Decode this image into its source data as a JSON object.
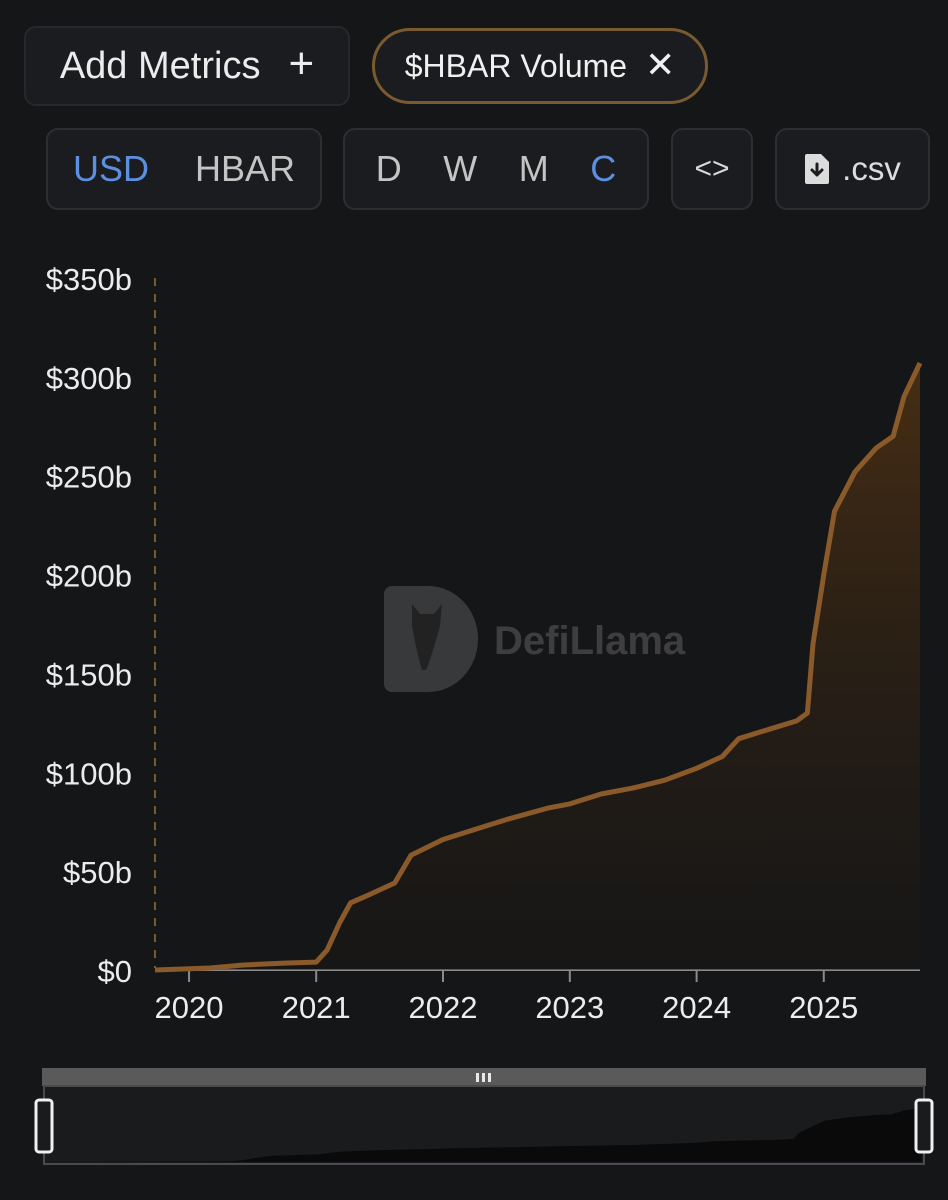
{
  "toolbar": {
    "add_metrics_label": "Add Metrics",
    "add_icon": "plus-icon",
    "metric_chip_label": "$HBAR Volume",
    "remove_icon": "close-icon",
    "denomination_options": [
      "USD",
      "HBAR"
    ],
    "denomination_selected": "USD",
    "period_options": [
      "D",
      "W",
      "M",
      "C"
    ],
    "period_selected": "C",
    "embed_icon": "code-icon",
    "csv_label": ".csv",
    "csv_icon": "file-download-icon"
  },
  "watermark": "DefiLlama",
  "colors": {
    "series": "#8a5a2a",
    "series_fill_top": "#4a2f14",
    "active_option": "#5d8fe0",
    "accent_border": "#7a5a30"
  },
  "chart_data": {
    "type": "area",
    "cumulative": true,
    "y_tick_labels": [
      "$0",
      "$50b",
      "$100b",
      "$150b",
      "$200b",
      "$250b",
      "$300b",
      "$350b"
    ],
    "x_tick_labels": [
      "2020",
      "2021",
      "2022",
      "2023",
      "2024",
      "2025"
    ],
    "ylim": [
      0,
      350
    ],
    "xlim": [
      "2019-09-25",
      "2025-10-05"
    ],
    "y_unit": "b USD",
    "series": [
      {
        "values": [
          [
            "2019-09-25",
            0
          ],
          [
            "2020-03-01",
            1
          ],
          [
            "2020-06-01",
            2.5
          ],
          [
            "2020-10-01",
            3.5
          ],
          [
            "2021-01-01",
            4
          ],
          [
            "2021-02-01",
            10
          ],
          [
            "2021-03-10",
            24
          ],
          [
            "2021-04-10",
            34
          ],
          [
            "2021-06-01",
            38
          ],
          [
            "2021-08-15",
            44
          ],
          [
            "2021-10-01",
            58
          ],
          [
            "2022-01-01",
            66
          ],
          [
            "2022-04-01",
            71
          ],
          [
            "2022-07-01",
            76
          ],
          [
            "2022-11-01",
            82
          ],
          [
            "2023-01-01",
            84
          ],
          [
            "2023-04-01",
            89
          ],
          [
            "2023-07-01",
            92
          ],
          [
            "2023-10-01",
            96
          ],
          [
            "2024-01-01",
            102
          ],
          [
            "2024-03-15",
            108
          ],
          [
            "2024-05-01",
            117
          ],
          [
            "2024-08-01",
            122
          ],
          [
            "2024-10-15",
            126
          ],
          [
            "2024-11-15",
            130
          ],
          [
            "2024-12-01",
            165
          ],
          [
            "2025-01-01",
            200
          ],
          [
            "2025-02-01",
            232
          ],
          [
            "2025-04-01",
            252
          ],
          [
            "2025-06-01",
            264
          ],
          [
            "2025-07-20",
            270
          ],
          [
            "2025-08-20",
            290
          ],
          [
            "2025-10-05",
            307
          ]
        ]
      }
    ],
    "grid": false,
    "legend": "none",
    "range_selector": {
      "handle_icon": "grip-icon"
    }
  }
}
